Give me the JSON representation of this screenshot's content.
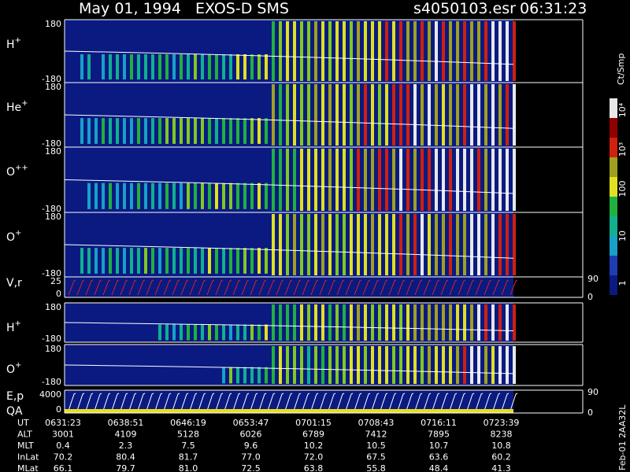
{
  "header": {
    "title": "May 01, 1994   EXOS-D SMS",
    "file": "s4050103.esr",
    "time": "06:31:23"
  },
  "panels": [
    {
      "label": "H",
      "charge": "+",
      "top": "180",
      "bottom": "-180"
    },
    {
      "label": "He",
      "charge": "+",
      "top": "180",
      "bottom": "-180"
    },
    {
      "label": "O",
      "charge": "++",
      "top": "180",
      "bottom": "-180"
    },
    {
      "label": "O",
      "charge": "+",
      "top": "180",
      "bottom": "-180"
    },
    {
      "label": "V,r",
      "top": "25",
      "bottom": "0",
      "right_top": "90",
      "right_bottom": "0"
    },
    {
      "label": "H",
      "charge": "+",
      "top": "180",
      "bottom": "-180"
    },
    {
      "label": "O",
      "charge": "+",
      "top": "180",
      "bottom": "-180"
    },
    {
      "label": "E,p",
      "label2": "QA",
      "top": "4000",
      "bottom": "0",
      "right_top": "90",
      "right_bottom": "0"
    }
  ],
  "colorbar": {
    "unit": "Ct/Smp",
    "labels": [
      "10⁴",
      "10³",
      "100",
      "10",
      "1"
    ]
  },
  "footer_id": "Feb-01 2AA32L",
  "table": {
    "rows": [
      [
        "UT",
        "0631:23",
        "0638:51",
        "0646:19",
        "0653:47",
        "0701:15",
        "0708:43",
        "0716:11",
        "0723:39"
      ],
      [
        "ALT",
        "3001",
        "4109",
        "5128",
        "6026",
        "6789",
        "7412",
        "7895",
        "8238"
      ],
      [
        "MLT",
        "0.4",
        "2.3",
        "7.5",
        "9.6",
        "10.2",
        "10.5",
        "10.7",
        "10.8"
      ],
      [
        "InLat",
        "70.2",
        "80.4",
        "81.7",
        "77.0",
        "72.0",
        "67.5",
        "63.6",
        "60.2"
      ],
      [
        "MLat",
        "66.1",
        "79.7",
        "81.0",
        "72.5",
        "63.8",
        "55.8",
        "48.4",
        "41.3"
      ]
    ]
  }
}
